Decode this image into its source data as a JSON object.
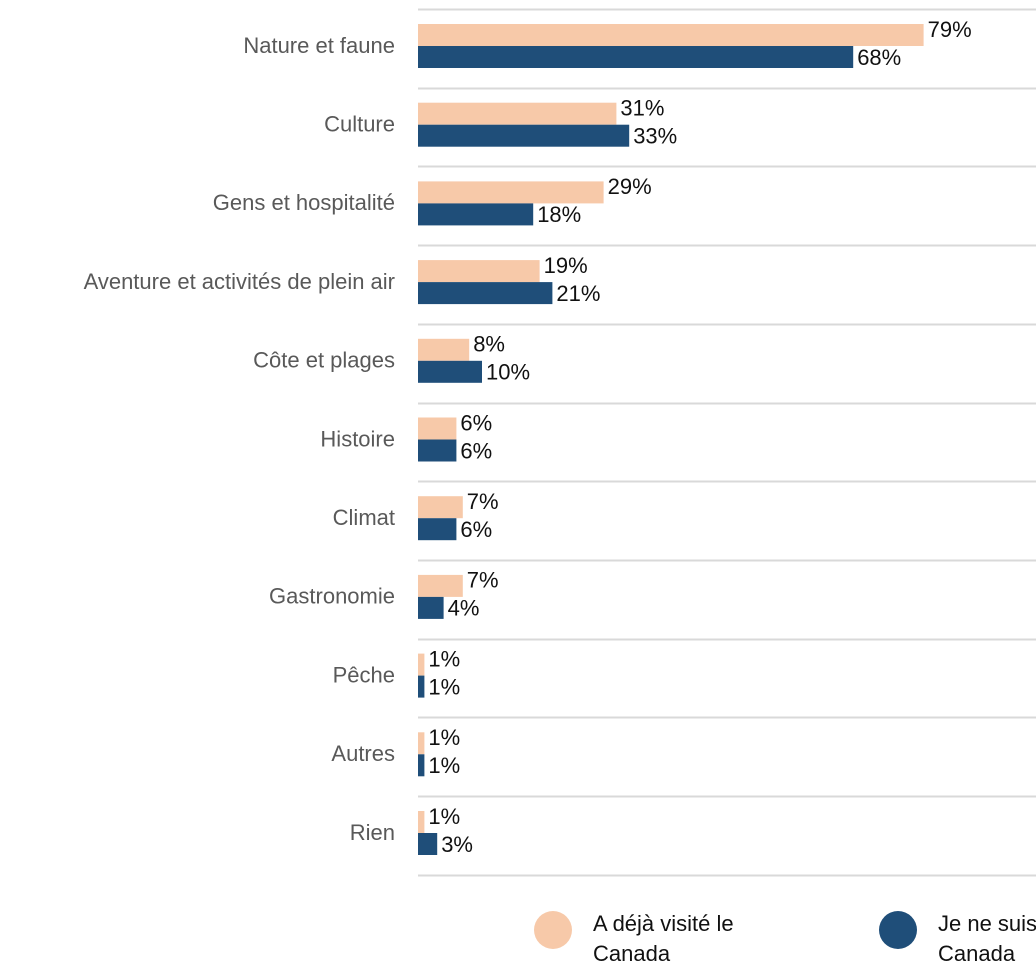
{
  "chart_data": {
    "type": "bar",
    "orientation": "horizontal",
    "categories": [
      "Nature et faune",
      "Culture",
      "Gens et hospitalité",
      "Aventure et activités de plein air",
      "Côte et plages",
      "Histoire",
      "Climat",
      "Gastronomie",
      "Pêche",
      "Autres",
      "Rien"
    ],
    "series": [
      {
        "name": "A déjà visité le Canada",
        "color": "#F7C9A9",
        "values": [
          79,
          31,
          29,
          19,
          8,
          6,
          7,
          7,
          1,
          1,
          1
        ],
        "labels": [
          "79%",
          "31%",
          "29%",
          "19%",
          "8%",
          "6%",
          "7%",
          "7%",
          "1%",
          "1%",
          "1%"
        ]
      },
      {
        "name": "Je ne suis jamais allé au Canada",
        "color": "#1F4E79",
        "values": [
          68,
          33,
          18,
          21,
          10,
          6,
          6,
          4,
          1,
          1,
          3
        ],
        "labels": [
          "68%",
          "33%",
          "18%",
          "21%",
          "10%",
          "6%",
          "6%",
          "4%",
          "1%",
          "1%",
          "3%"
        ]
      }
    ],
    "legend_lines": [
      [
        "A déjà visité le",
        "Canada"
      ],
      [
        "Je ne suis jamais allé au",
        "Canada"
      ]
    ],
    "legend_position": "bottom",
    "grid": "horizontal separators",
    "xlim": [
      0,
      100
    ]
  }
}
